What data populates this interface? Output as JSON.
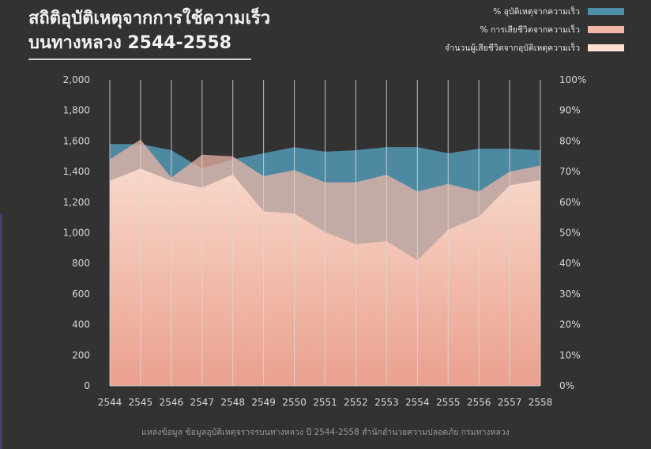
{
  "title": {
    "line1": "สถิติอุบัติเหตุจากการใช้ความเร็ว",
    "line2": "บนทางหลวง 2544-2558"
  },
  "legend": [
    {
      "label": "% อุบัติเหตุจากความเร็ว",
      "color": "#4f8ea8"
    },
    {
      "label": "% การเสียชีวิตจากความเร็ว",
      "color": "#f2b7a6"
    },
    {
      "label": "จำนวนผู้เสียชีวิตจากอุบัติเหตุความเร็ว",
      "color": "#fde0d0"
    }
  ],
  "footer": "แหล่งข้อมูล ข้อมูลอุบัติเหตุจราจรบนทางหลวง ปี 2544-2558 สำนักอำนวยความปลอดภัย กรมทางหลวง",
  "colors": {
    "background": "#323232",
    "accident_pct": "#4f8ea8",
    "death_pct": "#f2b7a6",
    "deaths_top": "#fcdccd",
    "deaths_bottom": "#ee9f8c",
    "gridline": "#d8d8d8",
    "tick_text": "#d6d6d6"
  },
  "chart_data": {
    "type": "area",
    "x": [
      "2544",
      "2545",
      "2546",
      "2547",
      "2548",
      "2549",
      "2550",
      "2551",
      "2552",
      "2553",
      "2554",
      "2555",
      "2556",
      "2557",
      "2558"
    ],
    "y_left": {
      "min": 0,
      "max": 2000,
      "ticks": [
        "0",
        "200",
        "400",
        "600",
        "800",
        "1,000",
        "1,200",
        "1,400",
        "1,600",
        "1,800",
        "2,000"
      ]
    },
    "y_right": {
      "min": 0,
      "max": 100,
      "ticks": [
        "0%",
        "10%",
        "20%",
        "30%",
        "40%",
        "50%",
        "60%",
        "70%",
        "80%",
        "90%",
        "100%"
      ]
    },
    "grid": "vertical lines at each year",
    "series": [
      {
        "name": "% อุบัติเหตุจากความเร็ว",
        "axis": "right",
        "unit": "%",
        "values": [
          79,
          79,
          77,
          71,
          74,
          76,
          78,
          76.5,
          77,
          78,
          78,
          76,
          77.5,
          77.5,
          77
        ]
      },
      {
        "name": "% การเสียชีวิตจากความเร็ว",
        "axis": "right",
        "unit": "%",
        "values": [
          74,
          80.5,
          68,
          75.5,
          75,
          68.5,
          70.5,
          66.5,
          66.5,
          69,
          63.5,
          66,
          63.5,
          70,
          72
        ]
      },
      {
        "name": "จำนวนผู้เสียชีวิตจากอุบัติเหตุความเร็ว",
        "axis": "left",
        "unit": "persons",
        "values": [
          1340,
          1420,
          1340,
          1295,
          1380,
          1140,
          1125,
          1005,
          925,
          945,
          820,
          1020,
          1105,
          1310,
          1345
        ]
      }
    ]
  }
}
